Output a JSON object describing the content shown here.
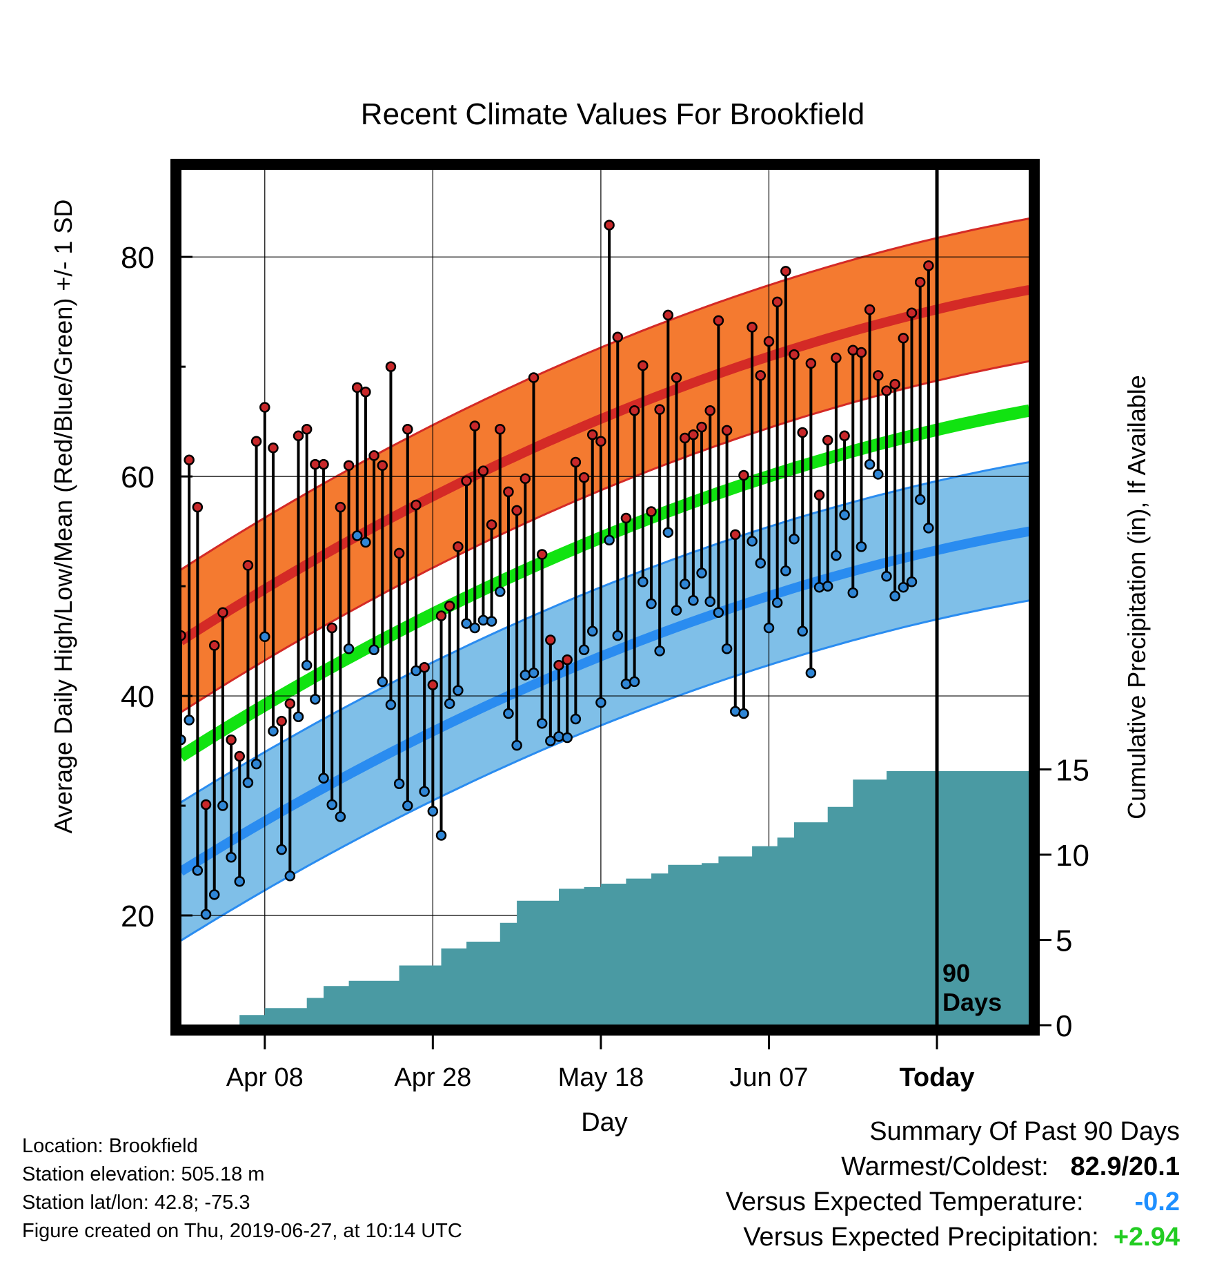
{
  "chart_data": {
    "type": "line",
    "title": "Recent Climate Values For Brookfield",
    "xlabel": "Day",
    "ylabel": "Average Daily High/Low/Mean (Red/Blue/Green) +/- 1 SD",
    "ylabel_right": "Cumulative Precipitation (in), If Available",
    "ylim": [
      10,
      88
    ],
    "y_ticks": [
      20,
      40,
      60,
      80
    ],
    "y_right_ticks": [
      0,
      5,
      10,
      15
    ],
    "x_range": [
      "2019-03-29",
      "2019-07-08"
    ],
    "x_tick_labels": [
      "Apr 08",
      "Apr 28",
      "May 18",
      "Jun 07",
      "Today"
    ],
    "x_tick_dates": [
      "2019-04-08",
      "2019-04-28",
      "2019-05-18",
      "2019-06-07",
      "2019-06-27"
    ],
    "marker_label": "90\nDays",
    "start_date": "2019-03-29",
    "high_temps": [
      45.5,
      61.5,
      57.2,
      30.1,
      44.6,
      47.6,
      36.0,
      34.5,
      51.9,
      63.2,
      66.3,
      62.6,
      37.7,
      39.3,
      63.7,
      64.3,
      61.1,
      61.1,
      46.2,
      57.2,
      61.0,
      68.1,
      67.7,
      61.9,
      61.0,
      70.0,
      53.0,
      64.3,
      57.4,
      42.6,
      41.0,
      47.3,
      48.2,
      53.6,
      59.6,
      64.6,
      60.5,
      55.6,
      64.3,
      58.6,
      56.9,
      59.8,
      69.0,
      52.9,
      45.1,
      42.8,
      43.3,
      61.3,
      59.9,
      63.8,
      63.2,
      82.9,
      72.7,
      56.2,
      66.0,
      70.1,
      56.8,
      66.1,
      74.7,
      69.0,
      63.5,
      63.8,
      64.5,
      66.0,
      74.2,
      64.2,
      54.7,
      60.1,
      73.6,
      69.2,
      72.3,
      75.9,
      78.7,
      71.1,
      64.0,
      70.3,
      58.3,
      63.3,
      70.8,
      63.7,
      71.5,
      71.3,
      75.2,
      69.2,
      67.8,
      68.4,
      72.6,
      74.9,
      77.7,
      79.2
    ],
    "low_temps": [
      36.0,
      37.8,
      24.1,
      20.1,
      21.9,
      30.0,
      25.3,
      23.1,
      32.1,
      33.8,
      45.4,
      36.8,
      26.0,
      23.6,
      38.1,
      42.8,
      39.7,
      32.5,
      30.1,
      29.0,
      44.3,
      54.6,
      54.0,
      44.2,
      41.3,
      39.2,
      32.0,
      30.0,
      42.3,
      31.3,
      29.5,
      27.3,
      39.3,
      40.5,
      46.6,
      46.2,
      46.9,
      46.8,
      49.5,
      38.4,
      35.5,
      41.9,
      42.1,
      37.5,
      35.9,
      36.3,
      36.2,
      37.9,
      44.2,
      45.9,
      39.4,
      54.2,
      45.5,
      41.1,
      41.3,
      50.4,
      48.4,
      44.1,
      54.9,
      47.8,
      50.2,
      48.7,
      51.2,
      48.6,
      47.6,
      44.3,
      38.6,
      38.4,
      54.1,
      52.1,
      46.2,
      48.5,
      51.4,
      54.3,
      45.9,
      42.1,
      49.9,
      50.0,
      52.8,
      56.5,
      49.4,
      53.6,
      61.1,
      60.2,
      50.9,
      49.1,
      49.9,
      50.4,
      57.9,
      55.3
    ],
    "expected_high": {
      "start": 45,
      "end": 77
    },
    "expected_low": {
      "start": 24,
      "end": 55
    },
    "expected_mean": {
      "start": 34.5,
      "end": 66
    },
    "sd_high": 6.5,
    "sd_low": 6.3,
    "precip_steps": [
      [
        0,
        0
      ],
      [
        7,
        0.6
      ],
      [
        10,
        1.0
      ],
      [
        15,
        1.6
      ],
      [
        17,
        2.3
      ],
      [
        20,
        2.6
      ],
      [
        26,
        3.5
      ],
      [
        31,
        4.5
      ],
      [
        34,
        4.9
      ],
      [
        38,
        6.0
      ],
      [
        40,
        7.3
      ],
      [
        45,
        8.0
      ],
      [
        48,
        8.1
      ],
      [
        50,
        8.3
      ],
      [
        53,
        8.6
      ],
      [
        56,
        8.9
      ],
      [
        58,
        9.4
      ],
      [
        62,
        9.5
      ],
      [
        64,
        9.9
      ],
      [
        68,
        10.5
      ],
      [
        71,
        11.0
      ],
      [
        73,
        11.9
      ],
      [
        77,
        12.8
      ],
      [
        80,
        14.4
      ],
      [
        84,
        14.9
      ],
      [
        90,
        14.9
      ]
    ],
    "series": [
      {
        "name": "Red",
        "values": []
      },
      {
        "name": "Blue",
        "values": []
      },
      {
        "name": "Green",
        "values": []
      }
    ]
  },
  "summary": {
    "title": "Summary Of Past 90 Days",
    "rows": [
      {
        "label": "Warmest/Coldest:",
        "value": "82.9/20.1",
        "color": "#000000"
      },
      {
        "label": "Versus Expected Temperature:",
        "value": "-0.2",
        "color": "#1e8fff"
      },
      {
        "label": "Versus Expected Precipitation:",
        "value": "+2.94",
        "color": "#22cc22"
      }
    ]
  },
  "info": {
    "location": "Location: Brookfield",
    "elevation": "Station elevation: 505.18 m",
    "latlon": "Station lat/lon: 42.8; -75.3",
    "created": "Figure created on Thu, 2019-06-27, at 10:14 UTC"
  },
  "colors": {
    "high_band": "#f47a30",
    "high_line": "#d42a26",
    "low_band": "#7fbfe8",
    "low_line": "#2a8cf0",
    "mean_line": "#11e311",
    "precip": "#4a9aa3",
    "high_dot": "#c8282a",
    "low_dot": "#2f86d6"
  }
}
